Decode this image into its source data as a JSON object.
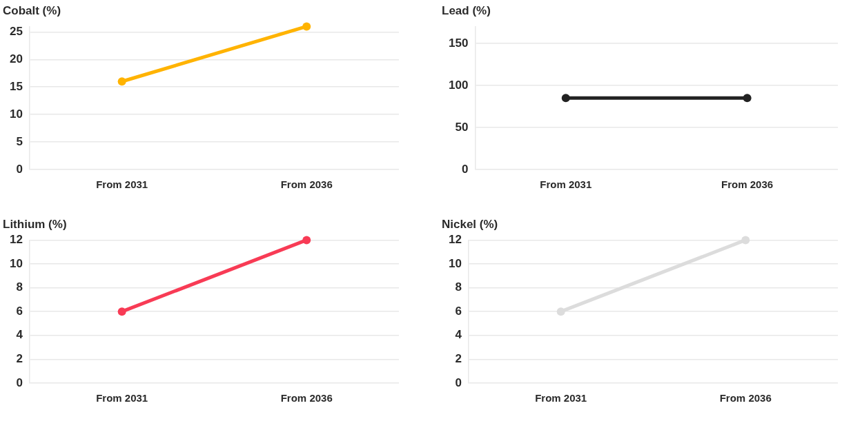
{
  "chart_data": [
    {
      "type": "line",
      "title": "Cobalt (%)",
      "categories": [
        "From 2031",
        "From 2036"
      ],
      "series": [
        {
          "color": "#ffb300",
          "values": [
            16,
            26
          ]
        }
      ],
      "ylim": [
        0,
        26
      ],
      "yticks": [
        0,
        5,
        10,
        15,
        20,
        25
      ],
      "grid": "y",
      "marker": "circle"
    },
    {
      "type": "line",
      "title": "Lead (%)",
      "categories": [
        "From 2031",
        "From 2036"
      ],
      "series": [
        {
          "color": "#222222",
          "values": [
            85,
            85
          ]
        }
      ],
      "ylim": [
        0,
        170
      ],
      "yticks": [
        0,
        50,
        100,
        150
      ],
      "grid": "y",
      "marker": "circle"
    },
    {
      "type": "line",
      "title": "Lithium (%)",
      "categories": [
        "From 2031",
        "From 2036"
      ],
      "series": [
        {
          "color": "#f83b55",
          "values": [
            6,
            12
          ]
        }
      ],
      "ylim": [
        0,
        12
      ],
      "yticks": [
        0,
        2,
        4,
        6,
        8,
        10,
        12
      ],
      "grid": "y",
      "marker": "circle"
    },
    {
      "type": "line",
      "title": "Nickel (%)",
      "categories": [
        "From 2031",
        "From 2036"
      ],
      "series": [
        {
          "color": "#dcdcdc",
          "values": [
            6,
            12
          ]
        }
      ],
      "ylim": [
        0,
        12
      ],
      "yticks": [
        0,
        2,
        4,
        6,
        8,
        10,
        12
      ],
      "grid": "y",
      "marker": "circle"
    }
  ]
}
